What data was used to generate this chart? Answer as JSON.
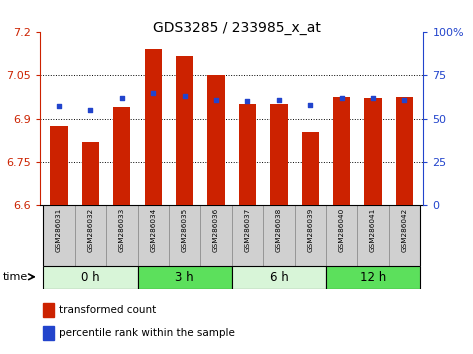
{
  "title": "GDS3285 / 233985_x_at",
  "samples": [
    "GSM286031",
    "GSM286032",
    "GSM286033",
    "GSM286034",
    "GSM286035",
    "GSM286036",
    "GSM286037",
    "GSM286038",
    "GSM286039",
    "GSM286040",
    "GSM286041",
    "GSM286042"
  ],
  "red_values": [
    6.875,
    6.82,
    6.94,
    7.14,
    7.115,
    7.05,
    6.95,
    6.95,
    6.855,
    6.975,
    6.97,
    6.975
  ],
  "blue_values": [
    57,
    55,
    62,
    65,
    63,
    61,
    60,
    61,
    58,
    62,
    62,
    61
  ],
  "ylim_left": [
    6.6,
    7.2
  ],
  "ylim_right": [
    0,
    100
  ],
  "yticks_left": [
    6.6,
    6.75,
    6.9,
    7.05,
    7.2
  ],
  "yticks_right": [
    0,
    25,
    50,
    75,
    100
  ],
  "ytick_labels_left": [
    "6.6",
    "6.75",
    "6.9",
    "7.05",
    "7.2"
  ],
  "ytick_labels_right": [
    "0",
    "25",
    "50",
    "75",
    "100%"
  ],
  "groups": [
    {
      "label": "0 h",
      "indices": [
        0,
        1,
        2
      ],
      "color": "#d8f5d8"
    },
    {
      "label": "3 h",
      "indices": [
        3,
        4,
        5
      ],
      "color": "#5ce05c"
    },
    {
      "label": "6 h",
      "indices": [
        6,
        7,
        8
      ],
      "color": "#d8f5d8"
    },
    {
      "label": "12 h",
      "indices": [
        9,
        10,
        11
      ],
      "color": "#5ce05c"
    }
  ],
  "bar_color": "#cc2200",
  "blue_color": "#2244cc",
  "bar_bottom": 6.6,
  "bar_width": 0.55,
  "grid_color": "black",
  "plot_bg_color": "#ffffff",
  "tick_label_bg": "#d0d0d0",
  "time_label": "time",
  "legend_items": [
    "transformed count",
    "percentile rank within the sample"
  ],
  "title_fontsize": 10,
  "left_tick_color": "#cc2200",
  "right_tick_color": "#2244cc",
  "left_axis_color": "#cc2200",
  "right_axis_color": "#2244cc"
}
